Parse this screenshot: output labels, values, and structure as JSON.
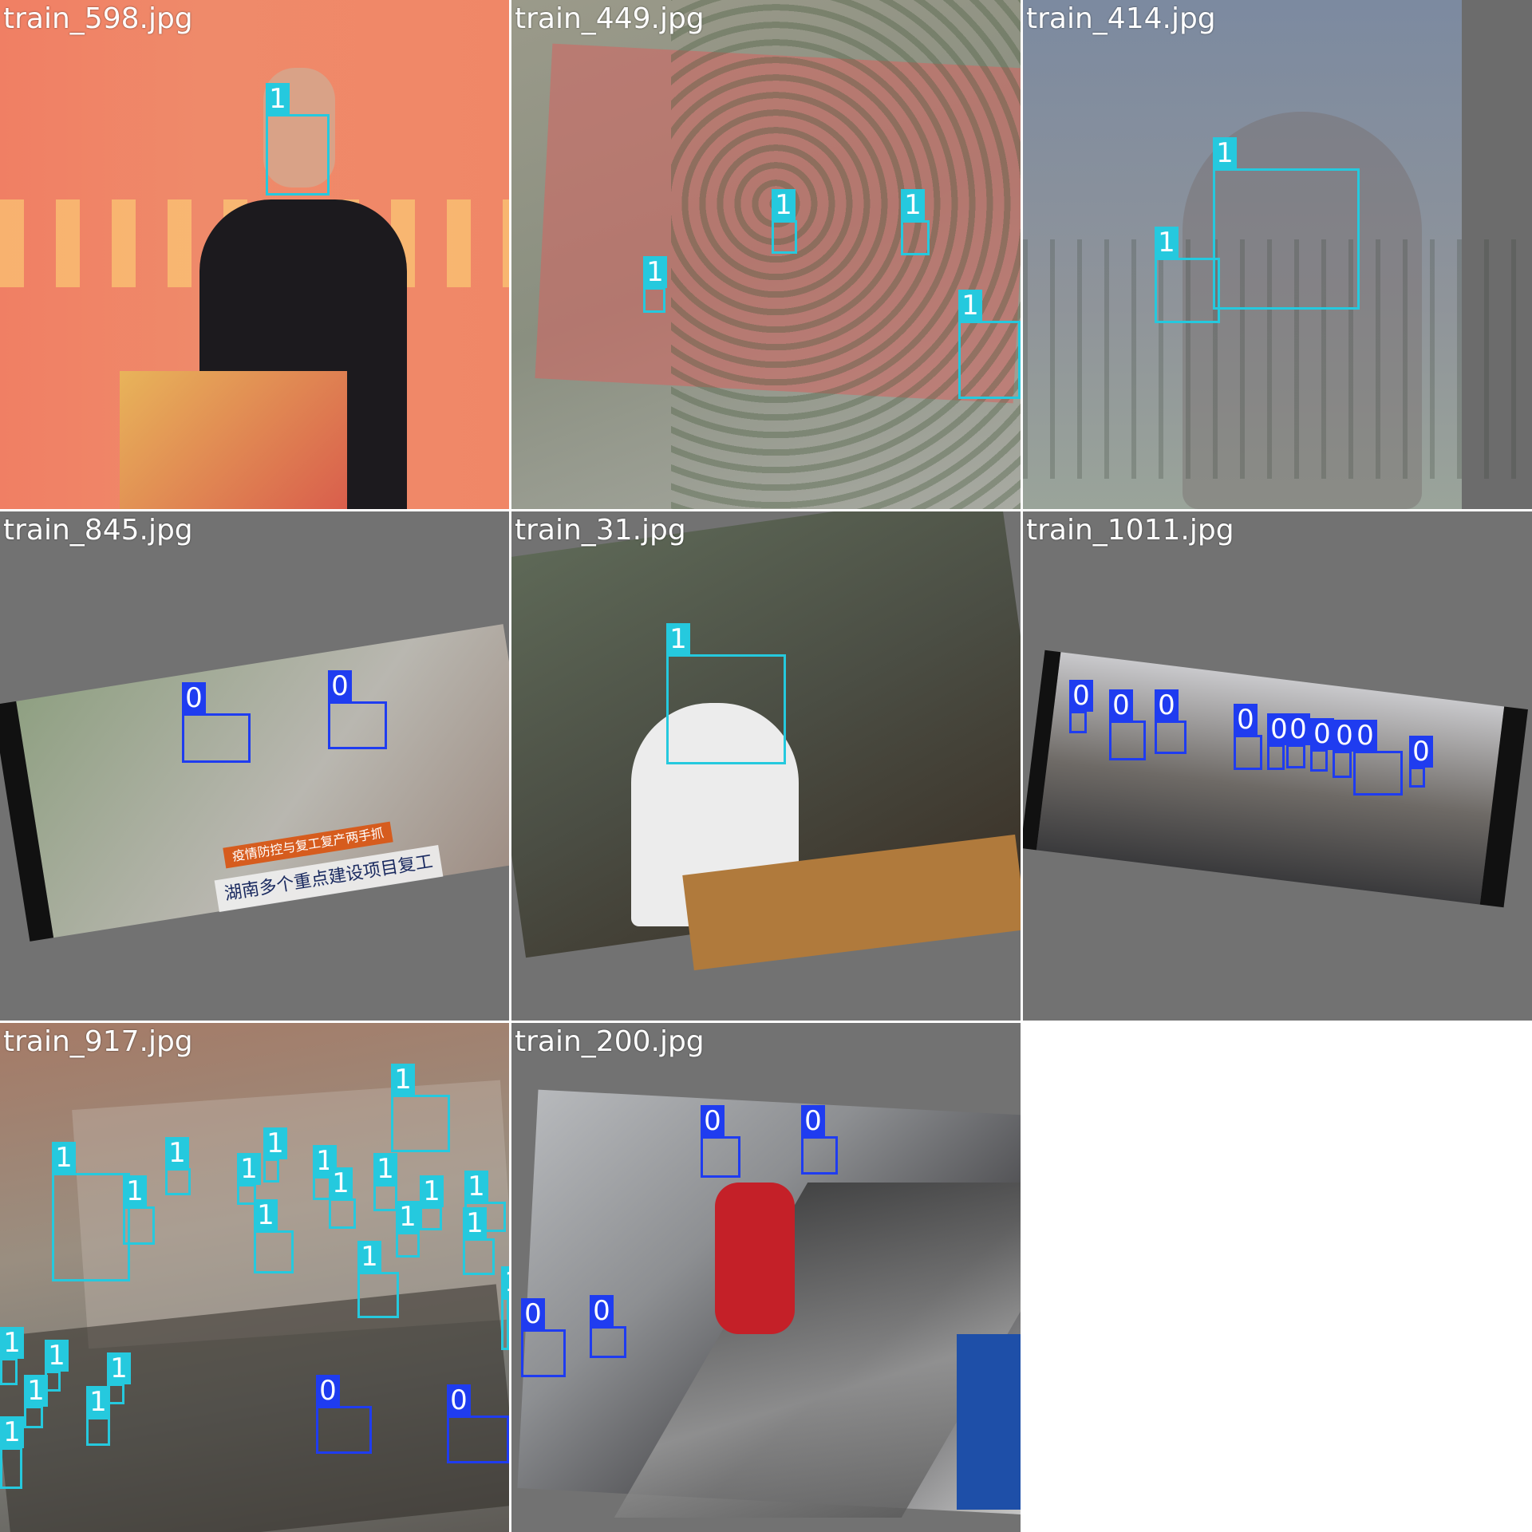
{
  "colors": {
    "class_0": "#1f3cf0",
    "class_1": "#25c9de",
    "gray_bg": "#727272"
  },
  "tiles": [
    {
      "label": "train_598.jpg",
      "boxes": [
        {
          "cls": "1"
        }
      ]
    },
    {
      "label": "train_449.jpg",
      "boxes": [
        {
          "cls": "1"
        },
        {
          "cls": "1"
        },
        {
          "cls": "1"
        },
        {
          "cls": "1"
        }
      ]
    },
    {
      "label": "train_414.jpg",
      "boxes": [
        {
          "cls": "1"
        },
        {
          "cls": "1"
        }
      ]
    },
    {
      "label": "train_845.jpg",
      "boxes": [
        {
          "cls": "0"
        },
        {
          "cls": "0"
        }
      ],
      "captions": [
        "湖南多个重点建设项目复工",
        "疫情防控与复工复产两手抓"
      ]
    },
    {
      "label": "train_31.jpg",
      "boxes": [
        {
          "cls": "1"
        }
      ]
    },
    {
      "label": "train_1011.jpg",
      "boxes": [
        {
          "cls": "0"
        },
        {
          "cls": "0"
        },
        {
          "cls": "0"
        },
        {
          "cls": "0"
        },
        {
          "cls": "0"
        },
        {
          "cls": "0"
        },
        {
          "cls": "0"
        },
        {
          "cls": "0"
        },
        {
          "cls": "0"
        },
        {
          "cls": "0"
        }
      ]
    },
    {
      "label": "train_917.jpg",
      "boxes": [
        {
          "cls": "1"
        },
        {
          "cls": "1"
        },
        {
          "cls": "1"
        },
        {
          "cls": "1"
        },
        {
          "cls": "1"
        },
        {
          "cls": "1"
        },
        {
          "cls": "1"
        },
        {
          "cls": "1"
        },
        {
          "cls": "1"
        },
        {
          "cls": "1"
        },
        {
          "cls": "1"
        },
        {
          "cls": "1"
        },
        {
          "cls": "1"
        },
        {
          "cls": "1"
        },
        {
          "cls": "1"
        },
        {
          "cls": "1"
        },
        {
          "cls": "1"
        },
        {
          "cls": "1"
        },
        {
          "cls": "1"
        },
        {
          "cls": "1"
        },
        {
          "cls": "1"
        },
        {
          "cls": "1"
        },
        {
          "cls": "0"
        },
        {
          "cls": "0"
        }
      ]
    },
    {
      "label": "train_200.jpg",
      "boxes": [
        {
          "cls": "0"
        },
        {
          "cls": "0"
        },
        {
          "cls": "0"
        },
        {
          "cls": "0"
        }
      ]
    }
  ]
}
